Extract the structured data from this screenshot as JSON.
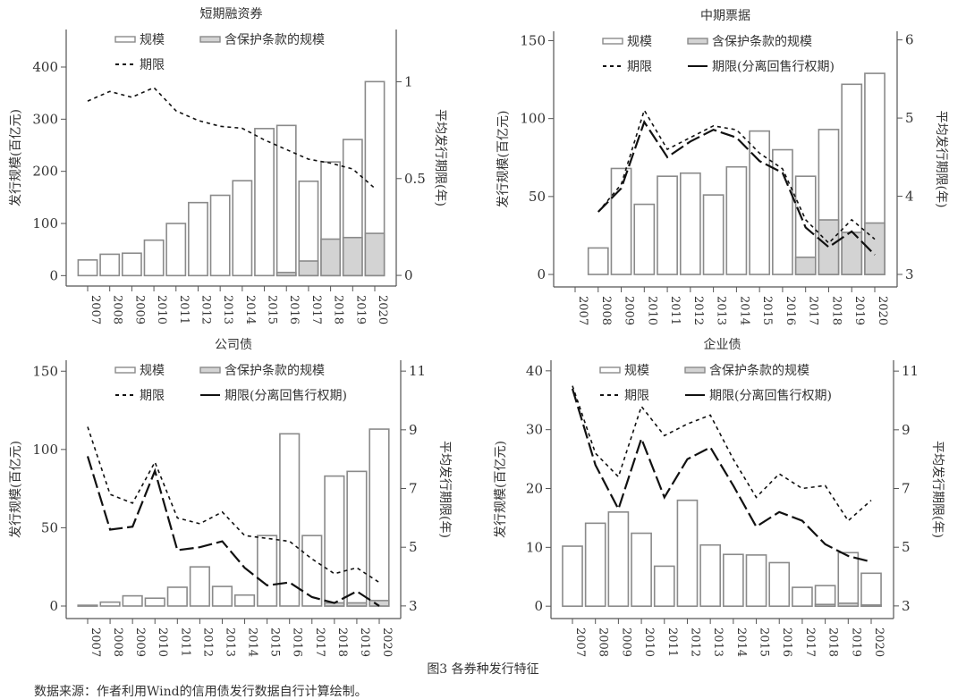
{
  "figure": {
    "caption": "图3  各券种发行特征",
    "source": "数据来源：作者利用Wind的信用债发行数据自行计算绘制。"
  },
  "colors": {
    "bar_fill": "#ffffff",
    "bar_stroke": "#8a8a8a",
    "protected_fill": "#d3d3d3",
    "line": "#111111",
    "axis": "#555555"
  },
  "chart_data": [
    {
      "type": "bar+line",
      "title": "短期融资券",
      "ylabel": "发行规模(百亿元)",
      "y2label": "平均发行期限(年)",
      "categories": [
        "2007",
        "2008",
        "2009",
        "2010",
        "2011",
        "2012",
        "2013",
        "2014",
        "2015",
        "2016",
        "2017",
        "2018",
        "2019",
        "2020"
      ],
      "ylim": [
        -20,
        472
      ],
      "yticks": [
        0,
        100,
        200,
        300,
        400
      ],
      "y2lim": [
        -0.055,
        1.27
      ],
      "y2ticks": [
        0,
        0.5,
        1
      ],
      "legend": [
        "规模",
        "含保护条款的规模",
        "期限"
      ],
      "series": [
        {
          "name": "规模",
          "kind": "bar",
          "values": [
            30,
            41,
            43,
            68,
            100,
            140,
            154,
            182,
            282,
            288,
            181,
            218,
            261,
            372
          ]
        },
        {
          "name": "含保护条款的规模",
          "kind": "bar-overlay",
          "values": [
            0,
            0,
            0,
            0,
            0,
            0,
            0,
            0,
            0,
            6,
            28,
            70,
            73,
            81
          ]
        },
        {
          "name": "期限",
          "kind": "dashed-line",
          "axis": "right",
          "values": [
            0.9,
            0.95,
            0.92,
            0.97,
            0.85,
            0.8,
            0.77,
            0.76,
            0.7,
            0.65,
            0.6,
            0.58,
            0.55,
            0.45
          ]
        }
      ]
    },
    {
      "type": "bar+line",
      "title": "中期票据",
      "ylabel": "发行规模(百亿元)",
      "y2label": "平均发行期限(年)",
      "categories": [
        "2007",
        "2008",
        "2009",
        "2010",
        "2011",
        "2012",
        "2013",
        "2014",
        "2015",
        "2016",
        "2017",
        "2018",
        "2019",
        "2020"
      ],
      "ylim": [
        -8,
        156
      ],
      "yticks": [
        0,
        50,
        100,
        150
      ],
      "y2lim": [
        2.84,
        6.11
      ],
      "y2ticks": [
        3,
        4,
        5,
        6
      ],
      "legend": [
        "规模",
        "含保护条款的规模",
        "期限",
        "期限(分离回售行权期)"
      ],
      "series": [
        {
          "name": "规模",
          "kind": "bar",
          "values": [
            null,
            17,
            68,
            45,
            63,
            65,
            51,
            69,
            92,
            80,
            63,
            93,
            122,
            129
          ]
        },
        {
          "name": "含保护条款的规模",
          "kind": "bar-overlay",
          "values": [
            null,
            0,
            0,
            0,
            0,
            0,
            0,
            0,
            0,
            0,
            11,
            35,
            27,
            33
          ]
        },
        {
          "name": "期限",
          "kind": "dashed-line",
          "axis": "right",
          "values": [
            null,
            3.8,
            4.15,
            5.1,
            4.6,
            4.75,
            4.9,
            4.85,
            4.55,
            4.35,
            3.7,
            3.4,
            3.7,
            3.45
          ]
        },
        {
          "name": "期限(分离回售行权期)",
          "kind": "solid-line",
          "axis": "right",
          "values": [
            null,
            3.8,
            4.1,
            4.95,
            4.5,
            4.7,
            4.85,
            4.75,
            4.45,
            4.3,
            3.6,
            3.35,
            3.55,
            3.25
          ]
        }
      ]
    },
    {
      "type": "bar+line",
      "title": "公司债",
      "ylabel": "发行规模(百亿元)",
      "y2label": "平均发行期限(年)",
      "categories": [
        "2007",
        "2008",
        "2009",
        "2010",
        "2011",
        "2012",
        "2013",
        "2014",
        "2015",
        "2016",
        "2017",
        "2018",
        "2019",
        "2020"
      ],
      "ylim": [
        -8,
        157
      ],
      "yticks": [
        0,
        50,
        100,
        150
      ],
      "y2lim": [
        2.57,
        11.37
      ],
      "y2ticks": [
        3,
        5,
        7,
        9,
        11
      ],
      "legend": [
        "规模",
        "含保护条款的规模",
        "期限",
        "期限(分离回售行权期)"
      ],
      "series": [
        {
          "name": "规模",
          "kind": "bar",
          "values": [
            0.5,
            2.5,
            6.5,
            5,
            12,
            25,
            12.5,
            7,
            45,
            110,
            45,
            83,
            86,
            113
          ]
        },
        {
          "name": "含保护条款的规模",
          "kind": "bar-overlay",
          "values": [
            0,
            0,
            0,
            0,
            0,
            0,
            0,
            0,
            0,
            0,
            0,
            2,
            2,
            3.5
          ]
        },
        {
          "name": "期限",
          "kind": "dashed-line",
          "axis": "right",
          "values": [
            9.1,
            6.8,
            6.5,
            7.9,
            6.0,
            5.8,
            6.2,
            5.4,
            5.3,
            5.2,
            4.6,
            4.1,
            4.3,
            3.8
          ]
        },
        {
          "name": "期限(分离回售行权期)",
          "kind": "solid-line",
          "axis": "right",
          "values": [
            8.1,
            5.6,
            5.7,
            7.6,
            4.9,
            5.0,
            5.2,
            4.3,
            3.7,
            3.8,
            3.3,
            3.1,
            3.5,
            3.0
          ]
        }
      ]
    },
    {
      "type": "bar+line",
      "title": "企业债",
      "ylabel": "发行规模(百亿元)",
      "y2label": "平均发行期限(年)",
      "categories": [
        "2007",
        "2008",
        "2009",
        "2010",
        "2011",
        "2012",
        "2013",
        "2014",
        "2015",
        "2016",
        "2017",
        "2018",
        "2019",
        "2020"
      ],
      "ylim": [
        -2.1,
        41.8
      ],
      "yticks": [
        0,
        10,
        20,
        30,
        40
      ],
      "y2lim": [
        2.57,
        11.37
      ],
      "y2ticks": [
        3,
        5,
        7,
        9,
        11
      ],
      "legend": [
        "规模",
        "含保护条款的规模",
        "期限",
        "期限(分离回售行权期)"
      ],
      "series": [
        {
          "name": "规模",
          "kind": "bar",
          "values": [
            10.2,
            14.1,
            16,
            12.4,
            6.8,
            18,
            10.4,
            8.8,
            8.7,
            7.4,
            3.2,
            3.5,
            9.1,
            5.6
          ]
        },
        {
          "name": "含保护条款的规模",
          "kind": "bar-overlay",
          "values": [
            0,
            0,
            0,
            0,
            0,
            0,
            0,
            0,
            0,
            0,
            0,
            0.3,
            0.5,
            0.2
          ]
        },
        {
          "name": "期限",
          "kind": "dashed-line",
          "axis": "right",
          "values": [
            10.5,
            8.2,
            7.4,
            9.8,
            8.8,
            9.2,
            9.5,
            8.0,
            6.7,
            7.5,
            7.0,
            7.1,
            5.9,
            6.6
          ]
        },
        {
          "name": "期限(分离回售行权期)",
          "kind": "solid-line",
          "axis": "right",
          "values": [
            10.4,
            7.8,
            6.3,
            8.7,
            6.7,
            8.0,
            8.4,
            7.1,
            5.7,
            6.2,
            5.9,
            5.1,
            4.7,
            4.5
          ]
        }
      ]
    }
  ]
}
